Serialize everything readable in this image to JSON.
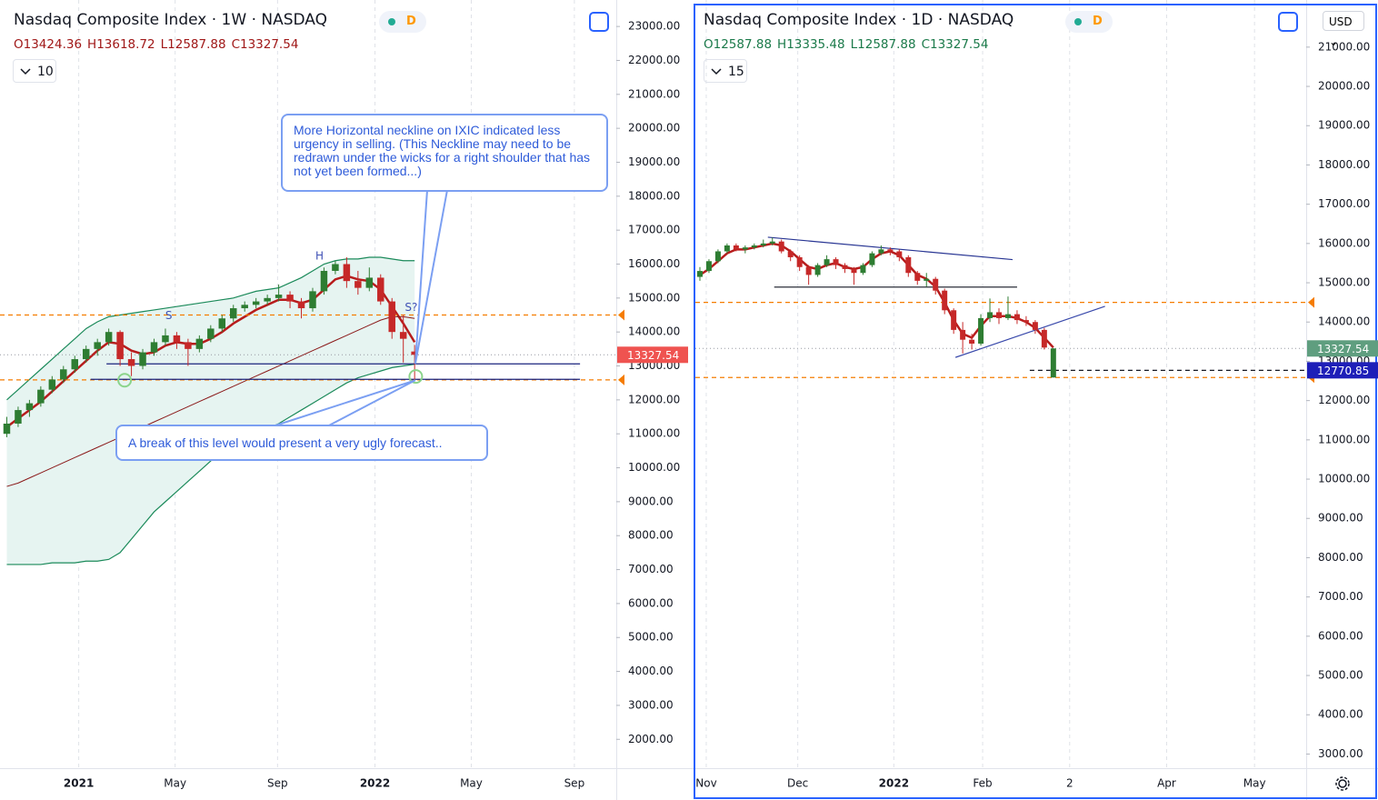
{
  "chart_data": [
    {
      "type": "candlestick",
      "title": "Nasdaq Composite Index · 1W · NASDAQ",
      "ohlc": [
        "O13424.36",
        "H13618.72",
        "L12587.88",
        "C13327.54"
      ],
      "ohlc_color": "#a01818",
      "indicators": 10,
      "badge": "D",
      "xlim": [
        -0.6,
        53.8
      ],
      "ylim": [
        1150,
        23780
      ],
      "xticks": [
        {
          "value": 6.35,
          "label": "2021"
        },
        {
          "value": 14.86,
          "label": "May"
        },
        {
          "value": 23.9,
          "label": "Sep"
        },
        {
          "value": 32.5,
          "label": "2022"
        },
        {
          "value": 41,
          "label": "May"
        },
        {
          "value": 50.1,
          "label": "Sep"
        }
      ],
      "yticks": [
        {
          "value": 23000,
          "label": "23000.00"
        },
        {
          "value": 22000,
          "label": "22000.00"
        },
        {
          "value": 21000,
          "label": "21000.00"
        },
        {
          "value": 20000,
          "label": "20000.00"
        },
        {
          "value": 19000,
          "label": "19000.00"
        },
        {
          "value": 18000,
          "label": "18000.00"
        },
        {
          "value": 17000,
          "label": "17000.00"
        },
        {
          "value": 16000,
          "label": "16000.00"
        },
        {
          "value": 15000,
          "label": "15000.00"
        },
        {
          "value": 14000,
          "label": "14000.00"
        },
        {
          "value": 13000,
          "label": "13000.00"
        },
        {
          "value": 12000,
          "label": "12000.00"
        },
        {
          "value": 11000,
          "label": "11000.00"
        },
        {
          "value": 10000,
          "label": "10000.00"
        },
        {
          "value": 9000,
          "label": "9000.00"
        },
        {
          "value": 8000,
          "label": "8000.00"
        },
        {
          "value": 7000,
          "label": "7000.00"
        },
        {
          "value": 6000,
          "label": "6000.00"
        },
        {
          "value": 5000,
          "label": "5000.00"
        },
        {
          "value": 4000,
          "label": "4000.00"
        },
        {
          "value": 3000,
          "label": "3000.00"
        },
        {
          "value": 2000,
          "label": "2000.00"
        }
      ],
      "grid": true,
      "up_color": "#2e7d32",
      "down_color": "#c62828",
      "candles": [
        [
          11000,
          11500,
          10900,
          11300
        ],
        [
          11300,
          11800,
          11200,
          11700
        ],
        [
          11700,
          12000,
          11500,
          11900
        ],
        [
          11900,
          12400,
          11800,
          12300
        ],
        [
          12300,
          12700,
          12200,
          12600
        ],
        [
          12600,
          13000,
          12500,
          12900
        ],
        [
          12900,
          13300,
          12800,
          13200
        ],
        [
          13200,
          13600,
          13100,
          13500
        ],
        [
          13500,
          13800,
          13300,
          13700
        ],
        [
          13700,
          14100,
          13600,
          14000
        ],
        [
          14000,
          14050,
          13000,
          13200
        ],
        [
          13200,
          13400,
          12700,
          13000
        ],
        [
          13000,
          13500,
          12900,
          13400
        ],
        [
          13400,
          13800,
          13300,
          13700
        ],
        [
          13700,
          14100,
          13600,
          13900
        ],
        [
          13900,
          14000,
          13500,
          13700
        ],
        [
          13700,
          13800,
          13000,
          13500
        ],
        [
          13500,
          13900,
          13400,
          13800
        ],
        [
          13800,
          14200,
          13700,
          14100
        ],
        [
          14100,
          14500,
          14000,
          14400
        ],
        [
          14400,
          14800,
          14300,
          14700
        ],
        [
          14700,
          14900,
          14600,
          14800
        ],
        [
          14800,
          15000,
          14700,
          14900
        ],
        [
          14900,
          15100,
          14800,
          15000
        ],
        [
          15000,
          15400,
          14900,
          15100
        ],
        [
          15100,
          15200,
          14700,
          14900
        ],
        [
          14900,
          15000,
          14400,
          14700
        ],
        [
          14700,
          15300,
          14600,
          15200
        ],
        [
          15200,
          15900,
          15100,
          15800
        ],
        [
          15800,
          16100,
          15700,
          16000
        ],
        [
          16000,
          16200,
          15300,
          15500
        ],
        [
          15500,
          15800,
          15100,
          15300
        ],
        [
          15300,
          15900,
          15200,
          15600
        ],
        [
          15600,
          15700,
          14800,
          14900
        ],
        [
          14900,
          15000,
          13800,
          14000
        ],
        [
          14000,
          14500,
          13100,
          13800
        ],
        [
          13424.36,
          13618.72,
          12587.88,
          13327.54
        ]
      ],
      "band": {
        "fill": "#e6f4f1",
        "lines": [
          1,
          2
        ]
      },
      "lines": [
        {
          "color": "#b71c1c",
          "width": 2.5,
          "values": [
            11200,
            11450,
            11700,
            11950,
            12250,
            12550,
            12850,
            13150,
            13450,
            13700,
            13650,
            13450,
            13350,
            13400,
            13600,
            13700,
            13650,
            13650,
            13800,
            14000,
            14250,
            14450,
            14650,
            14800,
            14950,
            14950,
            14850,
            14950,
            15250,
            15550,
            15650,
            15550,
            15500,
            15250,
            14750,
            14250,
            13700
          ]
        },
        {
          "color": "#1b8a5a",
          "width": 1.2,
          "values": [
            12000,
            12300,
            12600,
            12900,
            13200,
            13500,
            13800,
            14100,
            14300,
            14450,
            14500,
            14550,
            14600,
            14650,
            14700,
            14750,
            14800,
            14850,
            14900,
            14950,
            15000,
            15100,
            15200,
            15250,
            15300,
            15450,
            15600,
            15800,
            16000,
            16100,
            16150,
            16150,
            16200,
            16200,
            16150,
            16100,
            16100
          ]
        },
        {
          "color": "#1b8a5a",
          "width": 1.2,
          "values": [
            7150,
            7150,
            7150,
            7150,
            7200,
            7200,
            7200,
            7250,
            7250,
            7300,
            7500,
            7900,
            8300,
            8700,
            9000,
            9300,
            9600,
            9900,
            10200,
            10500,
            10700,
            10900,
            11050,
            11150,
            11300,
            11500,
            11700,
            11900,
            12100,
            12300,
            12500,
            12650,
            12750,
            12850,
            12950,
            13000,
            13050
          ]
        },
        {
          "color": "#8b1a1a",
          "width": 1,
          "values": [
            9450,
            9550,
            9700,
            9850,
            10000,
            10150,
            10300,
            10450,
            10600,
            10750,
            10900,
            11050,
            11200,
            11350,
            11500,
            11650,
            11800,
            11950,
            12100,
            12250,
            12400,
            12550,
            12700,
            12850,
            13000,
            13150,
            13300,
            13450,
            13600,
            13750,
            13900,
            14050,
            14200,
            14350,
            14450,
            14450,
            14400
          ]
        }
      ],
      "levels": [
        {
          "value": 14500,
          "color": "#f57c00",
          "marker": true
        },
        {
          "value": 12587.88,
          "color": "#f57c00",
          "marker": true
        }
      ],
      "trendlines": [
        {
          "x": [
            8.8,
            50.6
          ],
          "y": [
            13061,
            13061
          ],
          "color": "#1a237e"
        },
        {
          "x": [
            7.4,
            50.6
          ],
          "y": [
            12605,
            12605
          ],
          "color": "#1a237e"
        }
      ],
      "circles": [
        {
          "x": 10.4,
          "y": 12578
        },
        {
          "x": 36.1,
          "y": 12690
        }
      ],
      "labels": [
        {
          "text": "H",
          "x": 27.6,
          "y": 16222
        },
        {
          "text": "S",
          "x": 14.3,
          "y": 14480
        },
        {
          "text": "S?",
          "x": 35.7,
          "y": 14720
        }
      ],
      "price_tags": [
        {
          "value": 13327.54,
          "color": "#ef5350",
          "guide": true
        }
      ],
      "callouts": [
        {
          "text": "More Horizontal neckline on IXIC indicated less urgency in selling. (This Neckline may need to be redrawn under the wicks for a right shoulder that has not yet been formed...)",
          "target": [
            36.06,
            13061
          ]
        },
        {
          "text": "A break of this level would present a very ugly forecast..",
          "target": [
            36.06,
            12578
          ]
        }
      ]
    },
    {
      "type": "candlestick",
      "title": "Nasdaq Composite Index · 1D · NASDAQ",
      "ohlc": [
        "O12587.88",
        "H13335.48",
        "L12587.88",
        "C13327.54"
      ],
      "ohlc_color": "#1b7a4a",
      "indicators": 15,
      "badge": "D",
      "currency": "USD",
      "xlim": [
        -0.5,
        66.9
      ],
      "ylim": [
        2640,
        22200
      ],
      "xticks": [
        {
          "value": 0.7,
          "label": "Nov"
        },
        {
          "value": 10.8,
          "label": "Dec"
        },
        {
          "value": 21.4,
          "label": "2022"
        },
        {
          "value": 31.2,
          "label": "Feb"
        },
        {
          "value": 40.8,
          "label": "2"
        },
        {
          "value": 51.5,
          "label": "Apr"
        },
        {
          "value": 61.2,
          "label": "May"
        }
      ],
      "yticks": [
        {
          "value": 21000,
          "label": "21000.00"
        },
        {
          "value": 20000,
          "label": "20000.00"
        },
        {
          "value": 19000,
          "label": "19000.00"
        },
        {
          "value": 18000,
          "label": "18000.00"
        },
        {
          "value": 17000,
          "label": "17000.00"
        },
        {
          "value": 16000,
          "label": "16000.00"
        },
        {
          "value": 15000,
          "label": "15000.00"
        },
        {
          "value": 14000,
          "label": "14000.00"
        },
        {
          "value": 13000,
          "label": "13000.00"
        },
        {
          "value": 12000,
          "label": "12000.00"
        },
        {
          "value": 11000,
          "label": "11000.00"
        },
        {
          "value": 10000,
          "label": "10000.00"
        },
        {
          "value": 9000,
          "label": "9000.00"
        },
        {
          "value": 8000,
          "label": "8000.00"
        },
        {
          "value": 7000,
          "label": "7000.00"
        },
        {
          "value": 6000,
          "label": "6000.00"
        },
        {
          "value": 5000,
          "label": "5000.00"
        },
        {
          "value": 4000,
          "label": "4000.00"
        },
        {
          "value": 3000,
          "label": "3000.00"
        }
      ],
      "grid": true,
      "up_color": "#2e7d32",
      "down_color": "#c62828",
      "candles": [
        [
          15150,
          15400,
          15050,
          15300
        ],
        [
          15300,
          15600,
          15250,
          15550
        ],
        [
          15550,
          15850,
          15500,
          15800
        ],
        [
          15800,
          16000,
          15750,
          15950
        ],
        [
          15950,
          16000,
          15800,
          15850
        ],
        [
          15850,
          15950,
          15750,
          15900
        ],
        [
          15900,
          16000,
          15850,
          15950
        ],
        [
          15950,
          16100,
          15900,
          16000
        ],
        [
          16000,
          16150,
          15950,
          16050
        ],
        [
          16050,
          16100,
          15750,
          15800
        ],
        [
          15800,
          15850,
          15550,
          15650
        ],
        [
          15650,
          15700,
          15300,
          15400
        ],
        [
          15400,
          15450,
          14950,
          15200
        ],
        [
          15200,
          15500,
          15150,
          15450
        ],
        [
          15450,
          15700,
          15400,
          15600
        ],
        [
          15600,
          15650,
          15350,
          15450
        ],
        [
          15450,
          15500,
          15250,
          15350
        ],
        [
          15350,
          15400,
          14950,
          15250
        ],
        [
          15250,
          15500,
          15200,
          15450
        ],
        [
          15450,
          15800,
          15400,
          15750
        ],
        [
          15750,
          15950,
          15700,
          15850
        ],
        [
          15850,
          15900,
          15700,
          15800
        ],
        [
          15800,
          15850,
          15550,
          15650
        ],
        [
          15650,
          15700,
          15150,
          15250
        ],
        [
          15250,
          15300,
          14950,
          15050
        ],
        [
          15050,
          15250,
          14900,
          15100
        ],
        [
          15100,
          15150,
          14700,
          14800
        ],
        [
          14800,
          14850,
          14200,
          14300
        ],
        [
          14300,
          14350,
          13700,
          13800
        ],
        [
          13800,
          14000,
          13200,
          13550
        ],
        [
          13550,
          13700,
          13300,
          13450
        ],
        [
          13450,
          14200,
          13400,
          14100
        ],
        [
          14100,
          14600,
          14000,
          14250
        ],
        [
          14250,
          14350,
          13950,
          14100
        ],
        [
          14100,
          14650,
          14050,
          14200
        ],
        [
          14200,
          14300,
          13950,
          14050
        ],
        [
          14050,
          14150,
          13900,
          14000
        ],
        [
          14000,
          14050,
          13700,
          13800
        ],
        [
          13800,
          13850,
          13300,
          13350
        ],
        [
          12587.88,
          13335.48,
          12587.88,
          13327.54
        ]
      ],
      "lines": [
        {
          "color": "#b71c1c",
          "width": 2.5,
          "values": [
            15200,
            15350,
            15550,
            15750,
            15850,
            15850,
            15900,
            15950,
            16000,
            15950,
            15800,
            15600,
            15400,
            15350,
            15450,
            15500,
            15400,
            15350,
            15400,
            15600,
            15750,
            15800,
            15700,
            15450,
            15200,
            15100,
            14900,
            14500,
            14050,
            13700,
            13600,
            13900,
            14150,
            14150,
            14150,
            14100,
            14000,
            13850,
            13600,
            13350
          ]
        }
      ],
      "levels": [
        {
          "value": 14500,
          "color": "#f57c00",
          "marker": true
        },
        {
          "value": 12587.88,
          "color": "#f57c00",
          "marker": true
        },
        {
          "value": 12770.85,
          "color": "#131722",
          "from": 36.4
        }
      ],
      "trendlines": [
        {
          "x": [
            7.5,
            34.5
          ],
          "y": [
            16160,
            15590
          ],
          "color": "#283593"
        },
        {
          "x": [
            8.2,
            35
          ],
          "y": [
            14890,
            14890
          ],
          "color": "#131722"
        },
        {
          "x": [
            28.2,
            44.7
          ],
          "y": [
            13100,
            14400
          ],
          "color": "#3949ab"
        }
      ],
      "price_tags": [
        {
          "value": 13327.54,
          "color": "#5f9e7f",
          "guide": true
        },
        {
          "value": 12770.85,
          "color": "#1e1fb8"
        }
      ]
    }
  ]
}
